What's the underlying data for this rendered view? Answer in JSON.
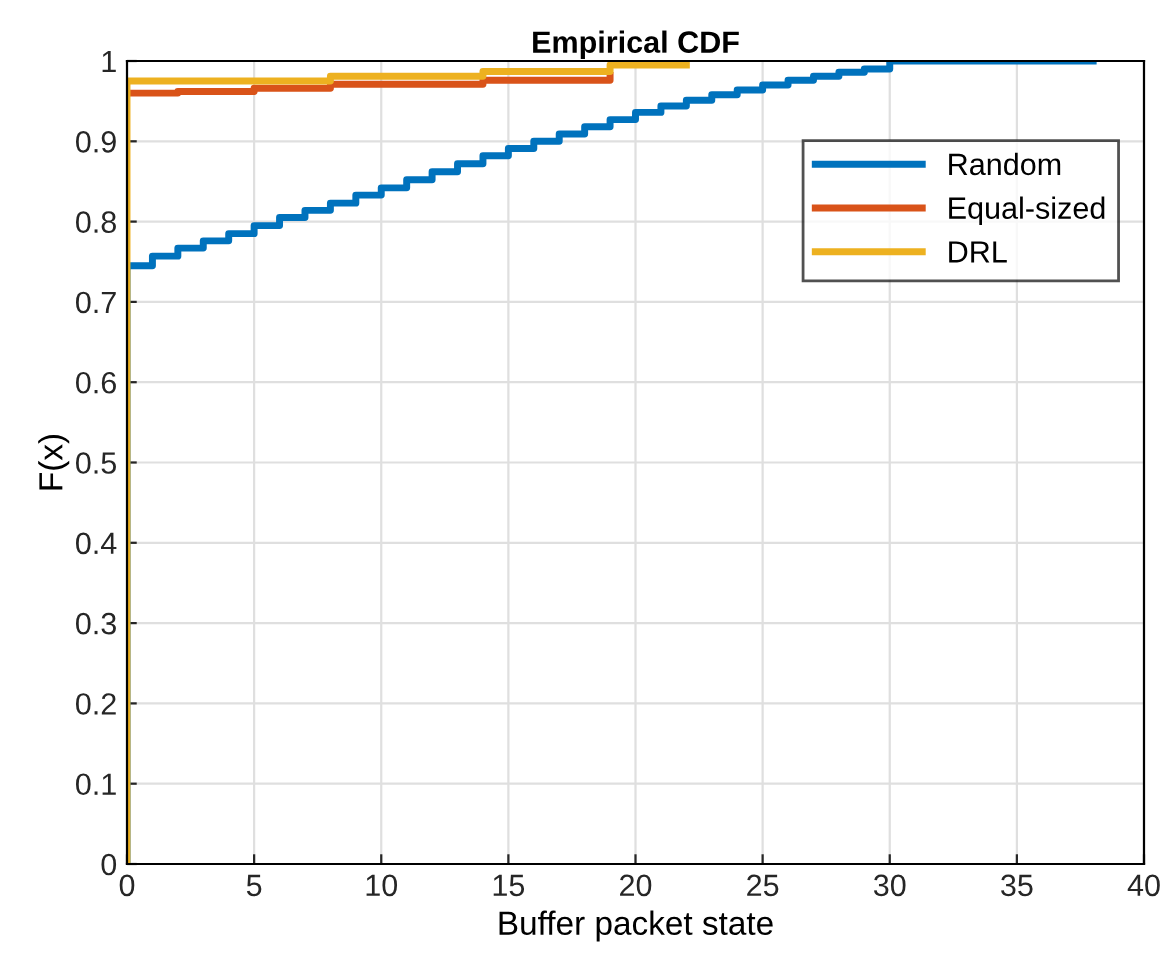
{
  "chart_data": {
    "type": "step",
    "title": "Empirical CDF",
    "xlabel": "Buffer packet state",
    "ylabel": "F(x)",
    "xlim": [
      0,
      40
    ],
    "ylim": [
      0,
      1
    ],
    "xticks": [
      0,
      5,
      10,
      15,
      20,
      25,
      30,
      35,
      40
    ],
    "yticks": [
      0,
      0.1,
      0.2,
      0.3,
      0.4,
      0.5,
      0.6,
      0.7,
      0.8,
      0.9,
      1
    ],
    "grid": true,
    "legend": "top right",
    "line_style": "solid",
    "marker": "none",
    "series": [
      {
        "name": "Random",
        "color": "#0072bd",
        "x": [
          0,
          0,
          1,
          2,
          3,
          4,
          5,
          6,
          7,
          8,
          9,
          10,
          11,
          12,
          13,
          14,
          15,
          16,
          17,
          18,
          19,
          20,
          21,
          22,
          23,
          24,
          25,
          26,
          27,
          28,
          29,
          30,
          38
        ],
        "values": [
          0,
          0.745,
          0.757,
          0.767,
          0.776,
          0.785,
          0.795,
          0.805,
          0.814,
          0.823,
          0.833,
          0.842,
          0.852,
          0.862,
          0.872,
          0.882,
          0.891,
          0.9,
          0.909,
          0.918,
          0.927,
          0.936,
          0.944,
          0.951,
          0.958,
          0.964,
          0.97,
          0.976,
          0.981,
          0.986,
          0.99,
          1,
          1
        ]
      },
      {
        "name": "Equal-sized",
        "color": "#d95319",
        "x": [
          0,
          2,
          5,
          8,
          14,
          19
        ],
        "values": [
          0.96,
          0.962,
          0.966,
          0.971,
          0.976,
          0.982
        ]
      },
      {
        "name": "DRL",
        "color": "#edb120",
        "x": [
          0,
          0,
          8,
          14,
          19,
          22
        ],
        "values": [
          0,
          0.975,
          0.981,
          0.987,
          0.995,
          0.995
        ]
      }
    ]
  }
}
